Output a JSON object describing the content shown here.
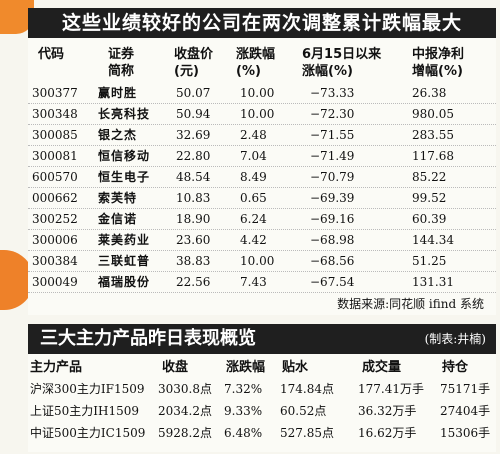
{
  "table1": {
    "title": "这些业绩较好的公司在两次调整累计跌幅最大",
    "headers": [
      {
        "l1": "代码",
        "l2": ""
      },
      {
        "l1": "证券",
        "l2": "简称"
      },
      {
        "l1": "收盘价",
        "l2": "(元)"
      },
      {
        "l1": "涨跌幅",
        "l2": "(%)"
      },
      {
        "l1": "6月15日以来",
        "l2": "涨幅(%)"
      },
      {
        "l1": "中报净利",
        "l2": "增幅(%)"
      }
    ],
    "rows": [
      [
        "300377",
        "赢时胜",
        "50.07",
        "10.00",
        "−73.33",
        "26.38"
      ],
      [
        "300348",
        "长亮科技",
        "50.94",
        "10.00",
        "−72.30",
        "980.05"
      ],
      [
        "300085",
        "银之杰",
        "32.69",
        "2.48",
        "−71.55",
        "283.55"
      ],
      [
        "300081",
        "恒信移动",
        "22.80",
        "7.04",
        "−71.49",
        "117.68"
      ],
      [
        "600570",
        "恒生电子",
        "48.54",
        "8.49",
        "−70.79",
        "85.22"
      ],
      [
        "000662",
        "索芙特",
        "10.83",
        "0.65",
        "−69.39",
        "99.52"
      ],
      [
        "300252",
        "金信诺",
        "18.90",
        "6.24",
        "−69.16",
        "60.39"
      ],
      [
        "300006",
        "莱美药业",
        "23.60",
        "4.42",
        "−68.98",
        "144.34"
      ],
      [
        "300384",
        "三联虹普",
        "38.83",
        "10.00",
        "−68.56",
        "51.25"
      ],
      [
        "300049",
        "福瑞股份",
        "22.56",
        "7.43",
        "−67.54",
        "131.31"
      ]
    ],
    "source": "数据来源:同花顺 ifind 系统"
  },
  "table2": {
    "title": "三大主力产品昨日表现概览",
    "credit": "(制表:井楠)",
    "headers": [
      "主力产品",
      "收盘",
      "涨跌幅",
      "贴水",
      "成交量",
      "持仓"
    ],
    "rows": [
      [
        "沪深300主力IF1509",
        "3030.8点",
        "7.32%",
        "174.84点",
        "177.41万手",
        "75171手"
      ],
      [
        "上证50主力IH1509",
        "2034.2点",
        "9.33%",
        "60.52点",
        "36.32万手",
        "27404手"
      ],
      [
        "中证500主力IC1509",
        "5928.2点",
        "6.48%",
        "527.85点",
        "16.62万手",
        "15306手"
      ]
    ]
  }
}
